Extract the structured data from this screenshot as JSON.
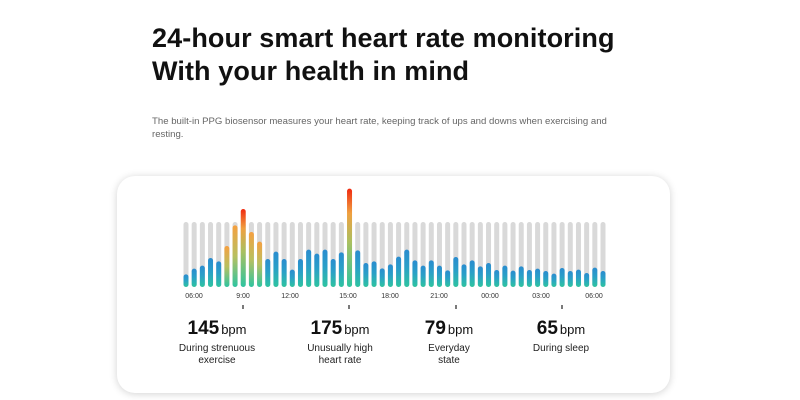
{
  "header": {
    "title_line1": "24-hour smart heart rate monitoring",
    "title_line2": "With your health in mind",
    "description": "The built-in PPG biosensor measures your heart rate, keeping track of ups and downs when exercising and resting."
  },
  "chart_data": {
    "type": "bar",
    "track_max": 195,
    "values": [
      38,
      55,
      64,
      87,
      77,
      123,
      185,
      234,
      165,
      136,
      84,
      106,
      84,
      52,
      84,
      112,
      100,
      112,
      84,
      104,
      295,
      110,
      72,
      77,
      56,
      68,
      91,
      112,
      80,
      64,
      80,
      64,
      50,
      90,
      68,
      80,
      62,
      72,
      51,
      64,
      49,
      62,
      51,
      55,
      48,
      40,
      57,
      48,
      52,
      42,
      58,
      48
    ],
    "tick_labels": [
      "06:00",
      "9:00",
      "12:00",
      "15:00",
      "18:00",
      "21:00",
      "00:00",
      "03:00",
      "06:00"
    ],
    "colors": {
      "track": "#d9d9d9",
      "teal": "#2ec4a0",
      "blue": "#2a8ccf",
      "orange": "#f5a040",
      "red": "#f02a10"
    }
  },
  "stats": [
    {
      "value": "145",
      "unit": "bpm",
      "label": "During strenuous exercise"
    },
    {
      "value": "175",
      "unit": "bpm",
      "label": "Unusually high heart rate"
    },
    {
      "value": "79",
      "unit": "bpm",
      "label": "Everyday state"
    },
    {
      "value": "65",
      "unit": "bpm",
      "label": "During sleep"
    }
  ]
}
